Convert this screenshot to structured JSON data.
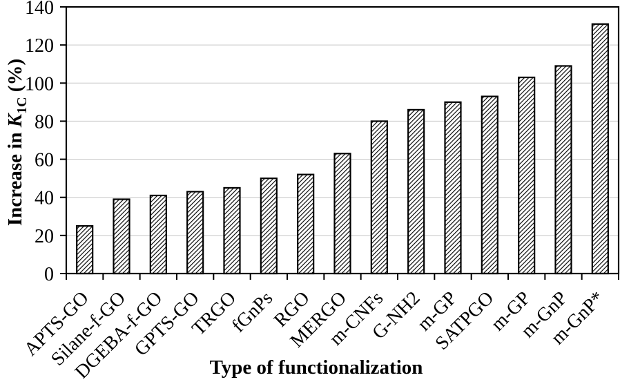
{
  "figure": {
    "background": "#ffffff"
  },
  "chart_data": {
    "type": "bar",
    "title": "",
    "xlabel": "Type of functionalization",
    "ylabel": "Increase in K1C (%)",
    "ylabel_parts": {
      "prefix": "Increase in ",
      "symbol": "K",
      "subscript": "1C",
      "suffix": " (%)"
    },
    "categories": [
      "APTS-GO",
      "Silane-f-GO",
      "DGEBA-f-GO",
      "GPTS-GO",
      "TRGO",
      "fGnPs",
      "RGO",
      "MERGO",
      "m-CNFs",
      "G-NH2",
      "m-GP",
      "SATPGO",
      "m-GP",
      "m-GnP",
      "m-GnP*"
    ],
    "values": [
      25,
      39,
      41,
      43,
      45,
      50,
      52,
      63,
      80,
      86,
      90,
      93,
      103,
      109,
      131
    ],
    "yticks": [
      0,
      20,
      40,
      60,
      80,
      100,
      120,
      140
    ],
    "ylim": [
      0,
      140
    ],
    "grid": true,
    "legend_position": "none",
    "bar_style": {
      "fill": "diagonal-hatch",
      "hatch_angle_deg": 45,
      "stroke": "#000000"
    },
    "colors": {
      "axis": "#000000",
      "grid": "#c8c8c8",
      "text": "#000000",
      "bar_hatch": "#000000",
      "background": "#ffffff"
    }
  }
}
